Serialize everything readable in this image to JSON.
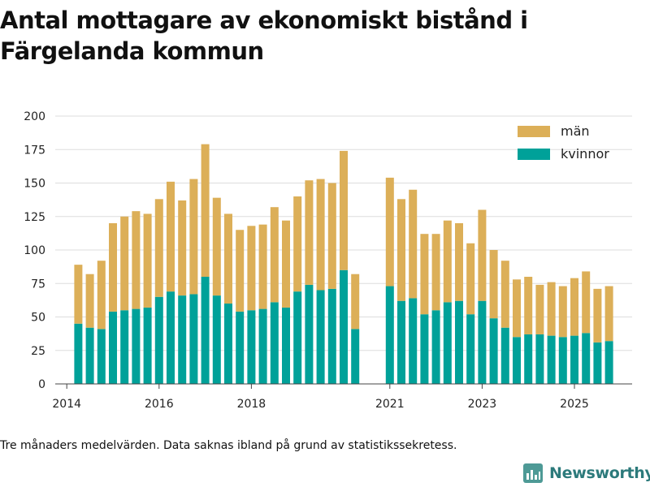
{
  "title": "Antal mottagare av ekonomiskt bistånd i Färgelanda kommun",
  "footnote": "Tre månaders medelvärden. Data saknas ibland på grund av statistikssekretess.",
  "brand": "Newsworthy",
  "colors": {
    "kvinnor": "#00a199",
    "man": "#dcaf58",
    "grid": "#dddddd",
    "axis": "#444444",
    "brand": "#2c7a7b"
  },
  "chart_data": {
    "type": "bar",
    "stacked": true,
    "ylim": [
      0,
      200
    ],
    "yticks": [
      0,
      25,
      50,
      75,
      100,
      125,
      150,
      175,
      200
    ],
    "xlim": [
      2013.75,
      2026.25
    ],
    "xticks": [
      {
        "value": 2014,
        "label": "2014"
      },
      {
        "value": 2016,
        "label": "2016"
      },
      {
        "value": 2018,
        "label": "2018"
      },
      {
        "value": 2021,
        "label": "2021"
      },
      {
        "value": 2023,
        "label": "2023"
      },
      {
        "value": 2025,
        "label": "2025"
      }
    ],
    "legend_position": "top-right",
    "series": [
      {
        "name": "kvinnor",
        "color": "#00a199",
        "values": [
          45,
          42,
          41,
          54,
          55,
          56,
          57,
          65,
          69,
          66,
          67,
          80,
          66,
          60,
          54,
          55,
          56,
          61,
          57,
          69,
          74,
          70,
          71,
          85,
          41,
          73,
          62,
          64,
          52,
          55,
          61,
          62,
          52,
          62,
          49,
          42,
          35,
          37,
          37,
          36,
          35,
          36,
          38,
          31,
          32
        ]
      },
      {
        "name": "män",
        "color": "#dcaf58",
        "values": [
          44,
          40,
          51,
          66,
          70,
          73,
          70,
          73,
          82,
          71,
          86,
          99,
          73,
          67,
          61,
          63,
          63,
          71,
          65,
          71,
          78,
          83,
          79,
          89,
          41,
          81,
          76,
          81,
          60,
          57,
          61,
          58,
          53,
          68,
          51,
          50,
          43,
          43,
          37,
          40,
          38,
          43,
          46,
          40,
          41
        ]
      }
    ],
    "x": [
      2014.25,
      2014.5,
      2014.75,
      2015.0,
      2015.25,
      2015.5,
      2015.75,
      2016.0,
      2016.25,
      2016.5,
      2016.75,
      2017.0,
      2017.25,
      2017.5,
      2017.75,
      2018.0,
      2018.25,
      2018.5,
      2018.75,
      2019.0,
      2019.25,
      2019.5,
      2019.75,
      2020.0,
      2020.25,
      2021.0,
      2021.25,
      2021.5,
      2021.75,
      2022.0,
      2022.25,
      2022.5,
      2022.75,
      2023.0,
      2023.25,
      2023.5,
      2023.75,
      2024.0,
      2024.25,
      2024.5,
      2024.75,
      2025.0,
      2025.25,
      2025.5,
      2025.75
    ]
  }
}
